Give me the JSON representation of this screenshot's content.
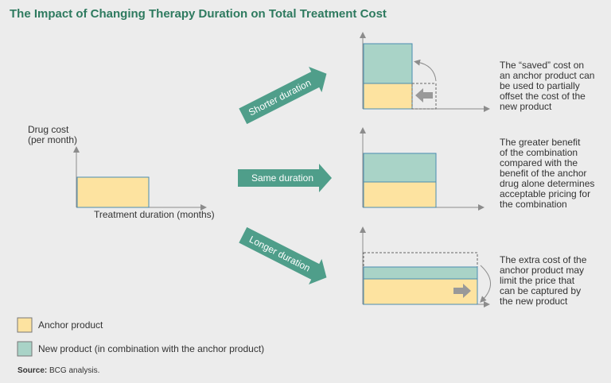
{
  "title": "The Impact of Changing Therapy Duration on Total Treatment Cost",
  "left_chart": {
    "y_label": [
      "Drug cost",
      "(per month)"
    ],
    "x_label": "Treatment duration (months)"
  },
  "scenarios": [
    {
      "label": "Shorter duration",
      "note": [
        "The “saved” cost on",
        "an anchor product can",
        "be used to partially",
        "offset the cost of the",
        "new product"
      ]
    },
    {
      "label": "Same duration",
      "note": [
        "The greater benefit",
        "of the combination",
        "compared with the",
        "benefit of the anchor",
        "drug alone determines",
        "acceptable pricing for",
        "the combination"
      ]
    },
    {
      "label": "Longer duration",
      "note": [
        "The extra cost of the",
        "anchor product may",
        "limit the price that",
        "can be captured by",
        "the new product"
      ]
    }
  ],
  "legend": [
    "Anchor product",
    "New product (in combination with the anchor product)"
  ],
  "source": {
    "label": "Source:",
    "text": "BCG analysis."
  }
}
